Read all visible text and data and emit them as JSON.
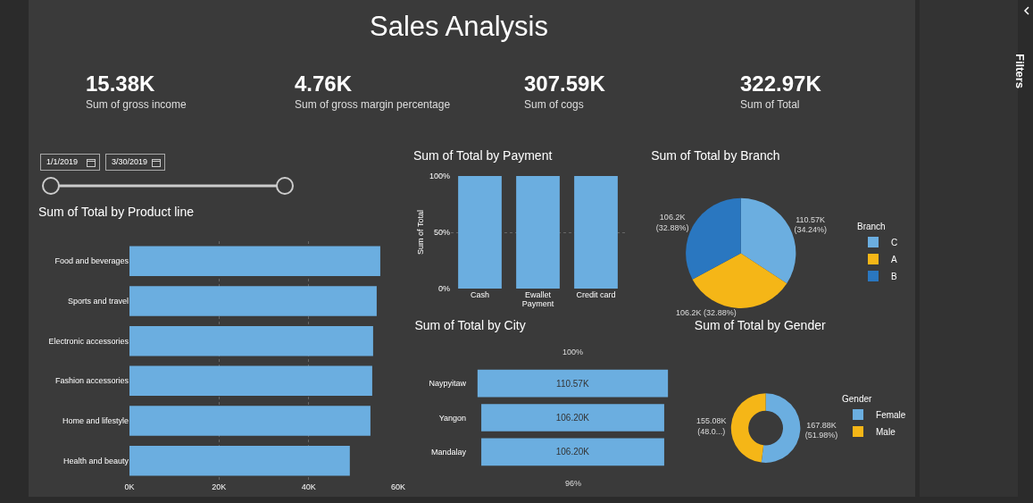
{
  "chart_data": [
    {
      "type": "other",
      "title": "Sales Analysis",
      "annotations": [
        "15.38K",
        "Sum of gross income",
        "4.76K",
        "Sum of gross margin percentage",
        "307.59K",
        "Sum of cogs",
        "322.97K",
        "Sum of Total",
        "1/1/2019",
        "3/30/2019",
        "Filters"
      ]
    },
    {
      "type": "bar",
      "title": "Sum of Total by Product line",
      "orientation": "horizontal",
      "categories": [
        "Food and beverages",
        "Sports and travel",
        "Electronic accessories",
        "Fashion accessories",
        "Home and lifestyle",
        "Health and beauty"
      ],
      "values": [
        56000,
        55200,
        54400,
        54200,
        53800,
        49200
      ],
      "color": "#6baee0",
      "xlim": [
        0,
        60000
      ],
      "xticks": [
        {
          "value": 0,
          "label": "0K"
        },
        {
          "value": 20000,
          "label": "20K"
        },
        {
          "value": 40000,
          "label": "40K"
        },
        {
          "value": 60000,
          "label": "60K"
        }
      ],
      "grid": "x"
    },
    {
      "type": "bar",
      "title": "Sum of Total by Payment",
      "xlabel": "Payment",
      "ylabel": "Sum of Total",
      "categories": [
        "Cash",
        "Ewallet",
        "Credit card"
      ],
      "values": [
        100,
        100,
        100
      ],
      "color": "#6baee0",
      "ylim": [
        0,
        100
      ],
      "yticks": [
        {
          "value": 0,
          "label": "0%"
        },
        {
          "value": 50,
          "label": "50%"
        },
        {
          "value": 100,
          "label": "100%"
        }
      ],
      "grid": "y"
    },
    {
      "type": "pie",
      "title": "Sum of Total by Branch",
      "legend_title": "Branch",
      "legend": "right",
      "categories": [
        "C",
        "A",
        "B"
      ],
      "values": [
        110570,
        106200,
        106200
      ],
      "colors": [
        "#6baee0",
        "#f5b617",
        "#2a77c0"
      ],
      "value_labels": [
        "110.57K\n(34.24%)",
        "106.2K (32.88%)",
        "106.2K\n(32.88%)"
      ]
    },
    {
      "type": "other",
      "title": "Sum of Total by City",
      "categories": [
        "Naypyitaw",
        "Yangon",
        "Mandalay"
      ],
      "values": [
        110570,
        106200,
        106200
      ],
      "value_labels": [
        "110.57K",
        "106.20K",
        "106.20K"
      ],
      "color": "#6baee0",
      "annotations": [
        "100%",
        "96%"
      ]
    },
    {
      "type": "donut",
      "title": "Sum of Total by Gender",
      "legend_title": "Gender",
      "legend": "right",
      "categories": [
        "Female",
        "Male"
      ],
      "values": [
        167880,
        155080
      ],
      "colors": [
        "#6baee0",
        "#f5b617"
      ],
      "value_labels": [
        "167.88K\n(51.98%)",
        "155.08K\n(48.0...)"
      ]
    }
  ]
}
